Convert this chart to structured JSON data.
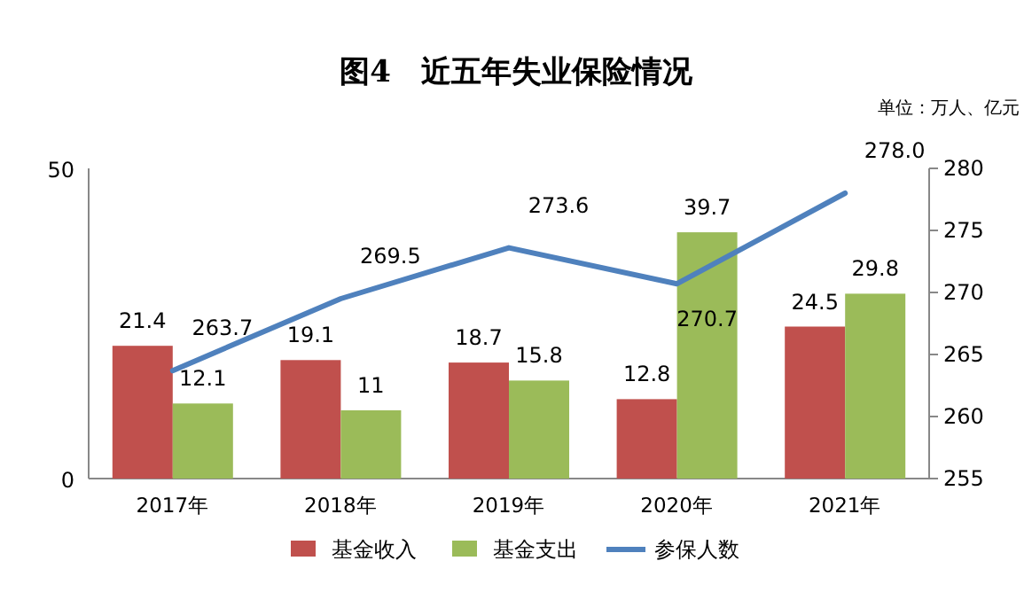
{
  "chart_data": {
    "type": "bar",
    "title": "图4　近五年失业保险情况",
    "subtitle": "单位：万人、亿元",
    "categories": [
      "2017年",
      "2018年",
      "2019年",
      "2020年",
      "2021年"
    ],
    "series": [
      {
        "name": "基金收入",
        "color": "#c0504d",
        "values": [
          21.4,
          19.1,
          18.7,
          12.8,
          24.5
        ]
      },
      {
        "name": "基金支出",
        "color": "#9bbb59",
        "values": [
          12.1,
          11,
          15.8,
          39.7,
          29.8
        ]
      },
      {
        "name": "参保人数",
        "type": "line",
        "axis": "y2",
        "color": "#4f81bd",
        "values": [
          263.7,
          269.5,
          273.6,
          270.7,
          278.0
        ],
        "value_labels": [
          "263.7",
          "269.5",
          "273.6",
          "270.7",
          "278.0"
        ]
      }
    ],
    "ylim": [
      0,
      50
    ],
    "yticks": [
      0,
      50
    ],
    "y2lim": [
      255,
      280
    ],
    "y2ticks": [
      255,
      260,
      265,
      270,
      275,
      280
    ],
    "data_labels": true,
    "legend": "bottom"
  }
}
